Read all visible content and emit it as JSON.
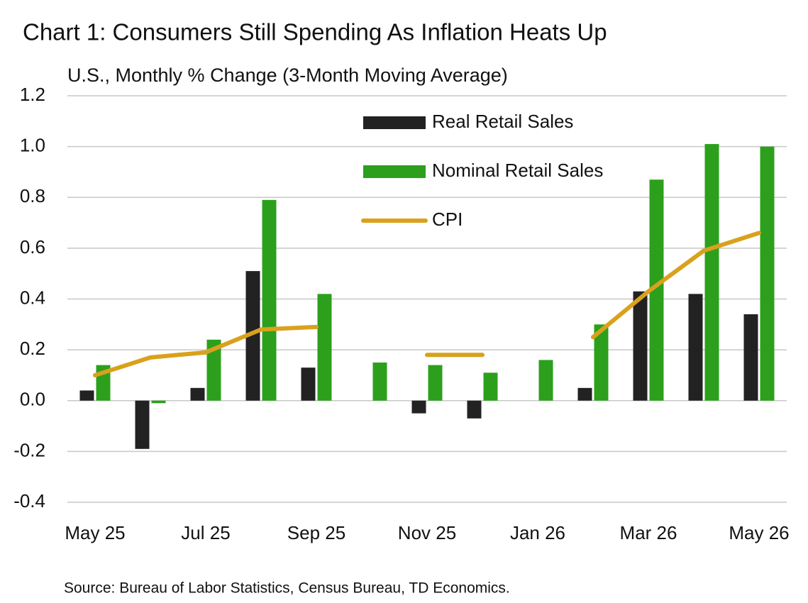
{
  "chart_data": {
    "type": "bar",
    "title": "Chart 1: Consumers Still Spending As Inflation Heats Up",
    "subtitle": "U.S., Monthly % Change (3-Month Moving Average)",
    "source": "Source: Bureau of Labor Statistics, Census Bureau, TD Economics.",
    "categories": [
      "May 25",
      null,
      "Jul 25",
      null,
      "Sep 25",
      null,
      "Nov 25",
      null,
      "Jan 26",
      null,
      "Mar 26",
      null,
      "May 26"
    ],
    "series": [
      {
        "name": "Real Retail Sales",
        "type": "bar",
        "color": "#222222",
        "values": [
          0.04,
          -0.19,
          0.05,
          0.51,
          0.13,
          null,
          -0.05,
          -0.07,
          null,
          0.05,
          0.43,
          0.42,
          0.34
        ]
      },
      {
        "name": "Nominal Retail Sales",
        "type": "bar",
        "color": "#2ca01c",
        "values": [
          0.14,
          -0.01,
          0.24,
          0.79,
          0.42,
          0.15,
          0.14,
          0.11,
          0.16,
          0.3,
          0.87,
          1.01,
          1.0
        ]
      },
      {
        "name": "CPI",
        "type": "line",
        "color": "#d9a11c",
        "values": [
          0.1,
          0.17,
          0.19,
          0.28,
          0.29,
          null,
          0.18,
          0.18,
          null,
          0.25,
          0.43,
          0.59,
          0.66
        ]
      }
    ],
    "ylim": [
      -0.4,
      1.2
    ],
    "yticks": [
      1.2,
      {
        "value": 1.0,
        "label": "1.0"
      },
      0.8,
      0.6,
      0.4,
      0.2,
      {
        "value": 0,
        "label": "0.0"
      },
      -0.2,
      -0.4
    ],
    "grid": true,
    "legend": "upper center"
  }
}
